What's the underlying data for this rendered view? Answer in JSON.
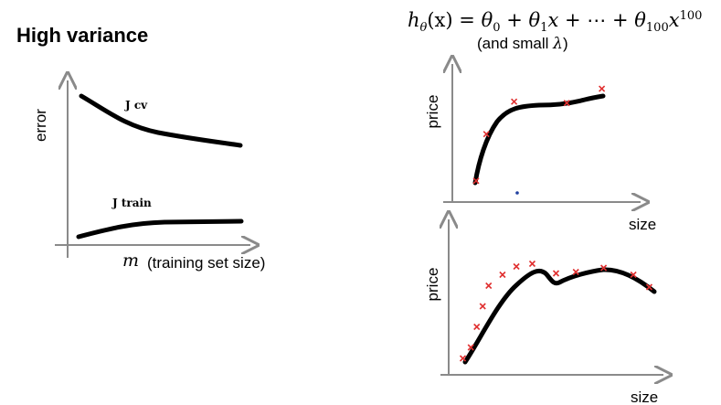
{
  "slide": {
    "title": "High variance",
    "hypothesis": {
      "lhs_symbol": "h",
      "lhs_sub": "θ",
      "lhs_arg": "(x)",
      "rhs_t0": "θ",
      "rhs_t0_sub": "0",
      "rhs_t1": "θ",
      "rhs_t1_sub": "1",
      "rhs_x": "x",
      "dots": "⋯",
      "rhs_tn": "θ",
      "rhs_tn_sub": "100",
      "rhs_xn": "x",
      "rhs_xn_sup": "100"
    },
    "note_prefix": "(and small",
    "note_lambda": "λ",
    "note_suffix": ")"
  },
  "learning_curve": {
    "ylabel": "error",
    "xlabel_symbol": "m",
    "xlabel_text": "(training set size)",
    "series": [
      {
        "name": "J cv",
        "trend": "decreasing"
      },
      {
        "name": "J train",
        "trend": "increasing"
      }
    ],
    "curve_color": "#000000"
  },
  "plot_top": {
    "ylabel": "price",
    "xlabel": "size",
    "marker_color": "#e03030",
    "curve_color": "#000000"
  },
  "plot_bottom": {
    "ylabel": "price",
    "xlabel": "size",
    "marker_color": "#e03030",
    "curve_color": "#000000"
  },
  "chart_data": [
    {
      "type": "line",
      "title": "",
      "xlabel": "m (training set size)",
      "ylabel": "error",
      "series": [
        {
          "name": "J cv",
          "x": [
            0.05,
            0.2,
            0.4,
            0.6,
            0.8,
            1.0
          ],
          "y": [
            0.93,
            0.8,
            0.67,
            0.62,
            0.58,
            0.55
          ]
        },
        {
          "name": "J train",
          "x": [
            0.05,
            0.2,
            0.4,
            0.6,
            0.8,
            1.0
          ],
          "y": [
            0.05,
            0.1,
            0.13,
            0.135,
            0.135,
            0.135
          ]
        }
      ],
      "grid": false
    },
    {
      "type": "scatter",
      "title": "",
      "xlabel": "size",
      "ylabel": "price",
      "series": [
        {
          "name": "",
          "x": [
            0.1,
            0.17,
            0.36,
            0.72,
            0.96
          ],
          "y": [
            0.17,
            0.53,
            0.78,
            0.77,
            0.88
          ]
        }
      ],
      "grid": false
    },
    {
      "type": "scatter",
      "title": "",
      "xlabel": "size",
      "ylabel": "price",
      "series": [
        {
          "name": "",
          "x": [
            0.03,
            0.07,
            0.1,
            0.13,
            0.16,
            0.23,
            0.3,
            0.38,
            0.5,
            0.6,
            0.74,
            0.89,
            0.97
          ],
          "y": [
            0.12,
            0.2,
            0.35,
            0.5,
            0.65,
            0.73,
            0.79,
            0.81,
            0.74,
            0.75,
            0.78,
            0.73,
            0.64
          ]
        }
      ],
      "grid": false
    }
  ]
}
